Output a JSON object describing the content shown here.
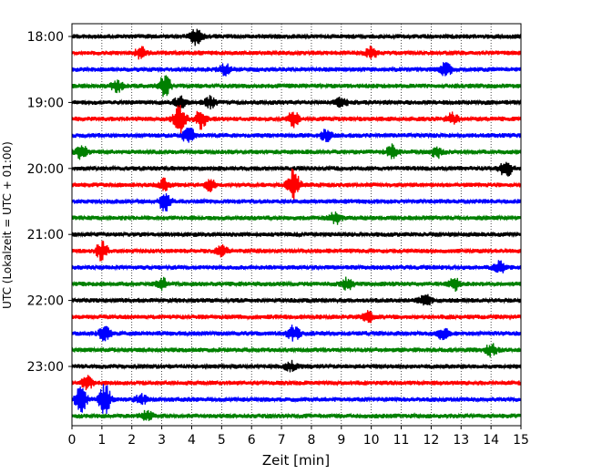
{
  "chart_data": {
    "type": "line",
    "title": "",
    "xlabel": "Zeit  [min]",
    "ylabel": "UTC (Lokalzeit = UTC + 01:00)",
    "xlim": [
      0,
      15
    ],
    "x_ticks": [
      "0",
      "1",
      "2",
      "3",
      "4",
      "5",
      "6",
      "7",
      "8",
      "9",
      "10",
      "11",
      "12",
      "13",
      "14",
      "15"
    ],
    "y_ticks": [
      "18:00",
      "19:00",
      "20:00",
      "21:00",
      "22:00",
      "23:00"
    ],
    "grid": "vertical dotted",
    "trace_interval_min": 15,
    "series_colors": [
      "#000000",
      "#ff0000",
      "#0000ff",
      "#008000"
    ],
    "traces": [
      {
        "start": "18:00",
        "color": "#000000",
        "events": [
          [
            4.15,
            10
          ]
        ]
      },
      {
        "start": "18:15",
        "color": "#ff0000",
        "events": [
          [
            2.3,
            6
          ],
          [
            10.0,
            6
          ]
        ]
      },
      {
        "start": "18:30",
        "color": "#0000ff",
        "events": [
          [
            5.1,
            6
          ],
          [
            12.5,
            8
          ]
        ]
      },
      {
        "start": "18:45",
        "color": "#008000",
        "events": [
          [
            1.5,
            6
          ],
          [
            3.1,
            12
          ]
        ]
      },
      {
        "start": "19:00",
        "color": "#000000",
        "events": [
          [
            3.6,
            6
          ],
          [
            4.6,
            6
          ],
          [
            9.0,
            5
          ]
        ]
      },
      {
        "start": "19:15",
        "color": "#ff0000",
        "events": [
          [
            3.6,
            16
          ],
          [
            4.3,
            10
          ],
          [
            7.4,
            8
          ],
          [
            12.7,
            6
          ]
        ]
      },
      {
        "start": "19:30",
        "color": "#0000ff",
        "events": [
          [
            3.9,
            10
          ],
          [
            8.5,
            6
          ]
        ]
      },
      {
        "start": "19:45",
        "color": "#008000",
        "events": [
          [
            0.3,
            8
          ],
          [
            10.7,
            7
          ],
          [
            12.2,
            6
          ]
        ]
      },
      {
        "start": "20:00",
        "color": "#000000",
        "events": [
          [
            14.5,
            10
          ]
        ]
      },
      {
        "start": "20:15",
        "color": "#ff0000",
        "events": [
          [
            3.1,
            6
          ],
          [
            4.6,
            6
          ],
          [
            7.4,
            18
          ]
        ]
      },
      {
        "start": "20:30",
        "color": "#0000ff",
        "events": [
          [
            3.1,
            10
          ]
        ]
      },
      {
        "start": "20:45",
        "color": "#008000",
        "events": [
          [
            8.8,
            6
          ]
        ]
      },
      {
        "start": "21:00",
        "color": "#000000",
        "events": []
      },
      {
        "start": "21:15",
        "color": "#ff0000",
        "events": [
          [
            1.0,
            10
          ],
          [
            5.0,
            5
          ]
        ]
      },
      {
        "start": "21:30",
        "color": "#0000ff",
        "events": [
          [
            14.3,
            6
          ]
        ]
      },
      {
        "start": "21:45",
        "color": "#008000",
        "events": [
          [
            3.0,
            6
          ],
          [
            9.2,
            6
          ],
          [
            12.8,
            7
          ]
        ]
      },
      {
        "start": "22:00",
        "color": "#000000",
        "events": [
          [
            11.8,
            6
          ]
        ]
      },
      {
        "start": "22:15",
        "color": "#ff0000",
        "events": [
          [
            9.9,
            6
          ]
        ]
      },
      {
        "start": "22:30",
        "color": "#0000ff",
        "events": [
          [
            1.1,
            8
          ],
          [
            7.4,
            9
          ],
          [
            12.4,
            6
          ]
        ]
      },
      {
        "start": "22:45",
        "color": "#008000",
        "events": [
          [
            14.0,
            6
          ]
        ]
      },
      {
        "start": "23:00",
        "color": "#000000",
        "events": [
          [
            7.3,
            5
          ]
        ]
      },
      {
        "start": "23:15",
        "color": "#ff0000",
        "events": [
          [
            0.5,
            7
          ]
        ]
      },
      {
        "start": "23:30",
        "color": "#0000ff",
        "events": [
          [
            0.3,
            14
          ],
          [
            1.1,
            16
          ],
          [
            2.3,
            6
          ]
        ]
      },
      {
        "start": "23:45",
        "color": "#008000",
        "events": [
          [
            2.5,
            5
          ]
        ]
      }
    ]
  }
}
